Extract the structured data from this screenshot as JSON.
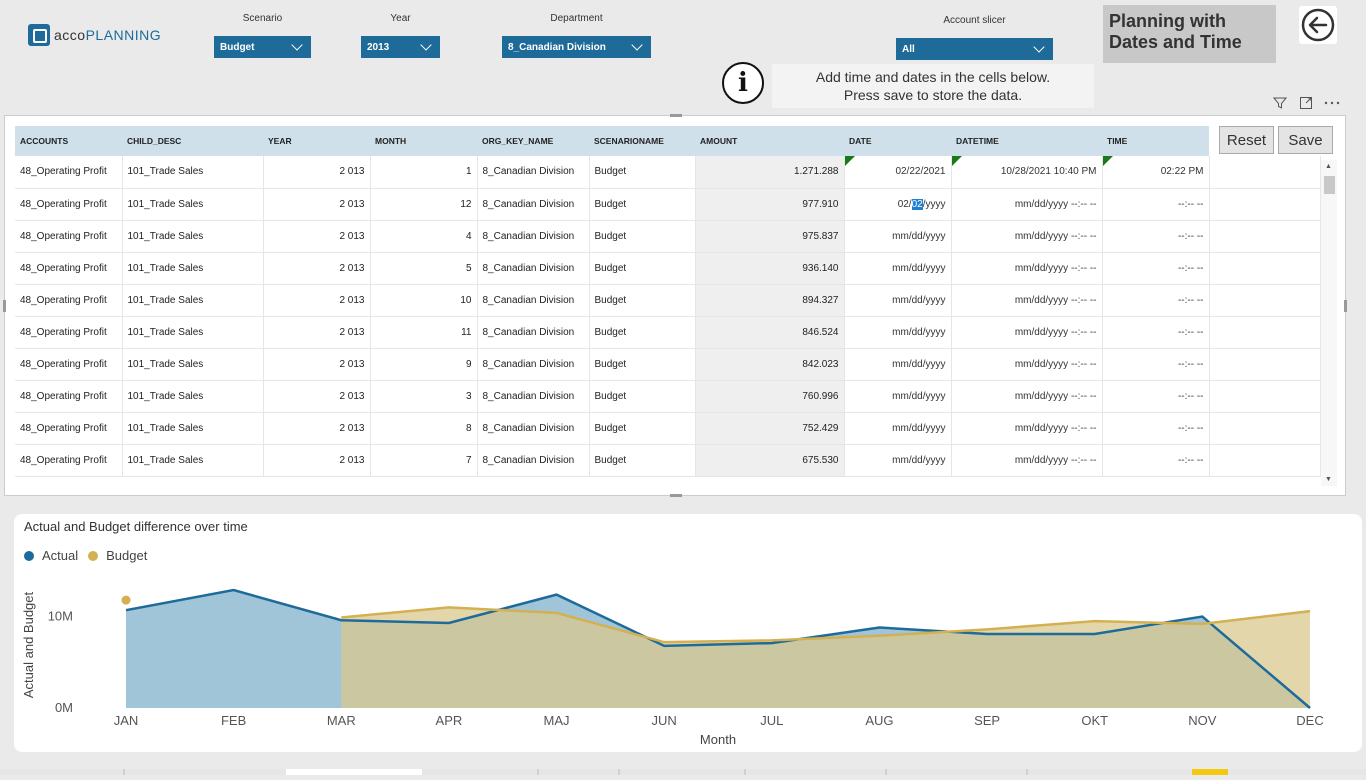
{
  "header": {
    "logo_a": "acco",
    "logo_b": "PLANNING",
    "scenario": {
      "label": "Scenario",
      "value": "Budget"
    },
    "year": {
      "label": "Year",
      "value": "2013"
    },
    "department": {
      "label": "Department",
      "value": "8_Canadian Division"
    },
    "account": {
      "label": "Account slicer",
      "value": "All"
    },
    "title_line1": "Planning with",
    "title_line2": "Dates and Time",
    "info_line1": "Add time and dates in the cells below.",
    "info_line2": "Press save to store the data."
  },
  "table": {
    "columns": [
      "ACCOUNTS",
      "CHILD_DESC",
      "YEAR",
      "MONTH",
      "ORG_KEY_NAME",
      "SCENARIONAME",
      "AMOUNT",
      "DATE",
      "DATETIME",
      "TIME"
    ],
    "reset_label": "Reset",
    "save_label": "Save",
    "rows": [
      {
        "account": "48_Operating Profit",
        "child": "101_Trade Sales",
        "year": "2 013",
        "month": "1",
        "org": "8_Canadian Division",
        "scenario": "Budget",
        "amount": "1.271.288",
        "date": "02/22/2021",
        "datetime": "10/28/2021  10:40  PM",
        "time": "02:22  PM"
      },
      {
        "account": "48_Operating Profit",
        "child": "101_Trade Sales",
        "year": "2 013",
        "month": "12",
        "org": "8_Canadian Division",
        "scenario": "Budget",
        "amount": "977.910",
        "date_a": "02/",
        "date_sel": "02",
        "date_b": "/yyyy",
        "datetime": "mm/dd/yyyy --:-- --",
        "time": "--:-- --"
      },
      {
        "account": "48_Operating Profit",
        "child": "101_Trade Sales",
        "year": "2 013",
        "month": "4",
        "org": "8_Canadian Division",
        "scenario": "Budget",
        "amount": "975.837",
        "date": "mm/dd/yyyy",
        "datetime": "mm/dd/yyyy --:-- --",
        "time": "--:-- --"
      },
      {
        "account": "48_Operating Profit",
        "child": "101_Trade Sales",
        "year": "2 013",
        "month": "5",
        "org": "8_Canadian Division",
        "scenario": "Budget",
        "amount": "936.140",
        "date": "mm/dd/yyyy",
        "datetime": "mm/dd/yyyy --:-- --",
        "time": "--:-- --"
      },
      {
        "account": "48_Operating Profit",
        "child": "101_Trade Sales",
        "year": "2 013",
        "month": "10",
        "org": "8_Canadian Division",
        "scenario": "Budget",
        "amount": "894.327",
        "date": "mm/dd/yyyy",
        "datetime": "mm/dd/yyyy --:-- --",
        "time": "--:-- --"
      },
      {
        "account": "48_Operating Profit",
        "child": "101_Trade Sales",
        "year": "2 013",
        "month": "11",
        "org": "8_Canadian Division",
        "scenario": "Budget",
        "amount": "846.524",
        "date": "mm/dd/yyyy",
        "datetime": "mm/dd/yyyy --:-- --",
        "time": "--:-- --"
      },
      {
        "account": "48_Operating Profit",
        "child": "101_Trade Sales",
        "year": "2 013",
        "month": "9",
        "org": "8_Canadian Division",
        "scenario": "Budget",
        "amount": "842.023",
        "date": "mm/dd/yyyy",
        "datetime": "mm/dd/yyyy --:-- --",
        "time": "--:-- --"
      },
      {
        "account": "48_Operating Profit",
        "child": "101_Trade Sales",
        "year": "2 013",
        "month": "3",
        "org": "8_Canadian Division",
        "scenario": "Budget",
        "amount": "760.996",
        "date": "mm/dd/yyyy",
        "datetime": "mm/dd/yyyy --:-- --",
        "time": "--:-- --"
      },
      {
        "account": "48_Operating Profit",
        "child": "101_Trade Sales",
        "year": "2 013",
        "month": "8",
        "org": "8_Canadian Division",
        "scenario": "Budget",
        "amount": "752.429",
        "date": "mm/dd/yyyy",
        "datetime": "mm/dd/yyyy --:-- --",
        "time": "--:-- --"
      },
      {
        "account": "48_Operating Profit",
        "child": "101_Trade Sales",
        "year": "2 013",
        "month": "7",
        "org": "8_Canadian Division",
        "scenario": "Budget",
        "amount": "675.530",
        "date": "mm/dd/yyyy",
        "datetime": "mm/dd/yyyy --:-- --",
        "time": "--:-- --"
      }
    ]
  },
  "chart_data": {
    "type": "area",
    "title": "Actual and Budget difference over time",
    "xlabel": "Month",
    "ylabel": "Actual and Budget",
    "categories": [
      "JAN",
      "FEB",
      "MAR",
      "APR",
      "MAJ",
      "JUN",
      "JUL",
      "AUG",
      "SEP",
      "OKT",
      "NOV",
      "DEC"
    ],
    "y_ticks": [
      "0M",
      "10M"
    ],
    "ylim": [
      0,
      14000000
    ],
    "legend_position": "top-left",
    "series": [
      {
        "name": "Actual",
        "color": "#1e6b9a",
        "values": [
          10700000,
          12900000,
          9600000,
          9300000,
          12400000,
          6800000,
          7100000,
          8800000,
          8100000,
          8100000,
          10000000,
          0
        ]
      },
      {
        "name": "Budget",
        "color": "#d4b050",
        "values": [
          11800000,
          null,
          9900000,
          11000000,
          10400000,
          7200000,
          7400000,
          7900000,
          8600000,
          9500000,
          9200000,
          10600000
        ]
      }
    ]
  }
}
